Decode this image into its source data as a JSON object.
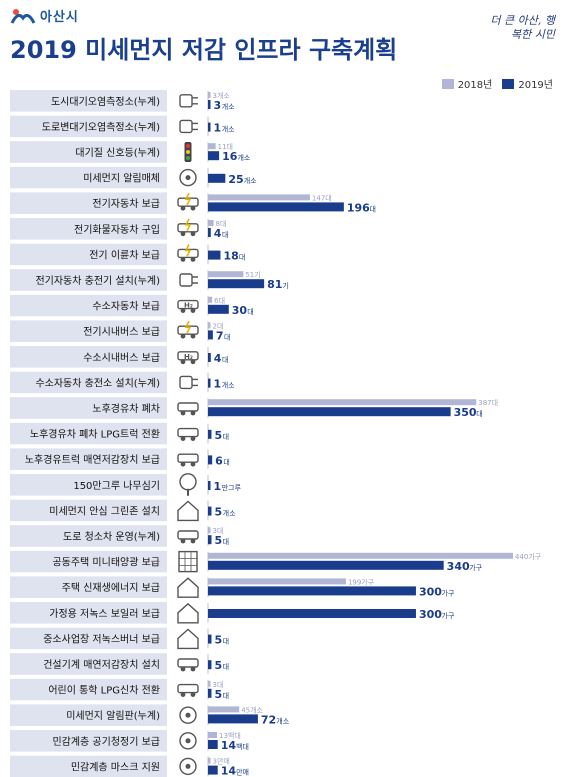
{
  "header": {
    "city_name": "아산시",
    "title": "2019 미세먼지 저감 인프라 구축계획",
    "slogan": "더 큰 아산, 행복한 시민"
  },
  "colors": {
    "series_2018": "#b1b5d6",
    "series_2019": "#1a3c8c",
    "row_band": "#dfe3ef"
  },
  "chart_data": {
    "type": "bar",
    "orientation": "horizontal",
    "title": "2019 미세먼지 저감 인프라 구축계획",
    "legend_position": "top-right",
    "series": [
      {
        "name": "2018년",
        "values": [
          3,
          null,
          11,
          null,
          147,
          8,
          null,
          51,
          6,
          2,
          null,
          null,
          387,
          null,
          null,
          null,
          null,
          3,
          440,
          199,
          null,
          null,
          null,
          3,
          45,
          13,
          3
        ]
      },
      {
        "name": "2019년",
        "values": [
          3,
          1,
          16,
          25,
          196,
          4,
          18,
          81,
          30,
          7,
          4,
          1,
          350,
          5,
          6,
          1,
          5,
          5,
          340,
          300,
          300,
          5,
          5,
          5,
          72,
          14,
          14
        ]
      }
    ],
    "categories": [
      "도시대기오염측정소(누계)",
      "도로변대기오염측정소(누계)",
      "대기질 신호등(누계)",
      "미세먼지 알림매체",
      "전기자동차 보급",
      "전기화물자동차 구입",
      "전기 이륜차 보급",
      "전기자동차 충전기 설치(누계)",
      "수소자동차 보급",
      "전기시내버스 보급",
      "수소시내버스 보급",
      "수소자동차 충전소 설치(누계)",
      "노후경유차 폐차",
      "노후경유차 폐차 LPG트럭 전환",
      "노후경유트럭 매연저감장치 보급",
      "150만그루 나무심기",
      "미세먼지 안심 그린존 설치",
      "도로 청소차 운영(누계)",
      "공동주택 미니태양광 보급",
      "주택 신재생에너지 보급",
      "가정용 저녹스 보일러 보급",
      "중소사업장 저녹스버너 보급",
      "건설기계 매연저감장치 설치",
      "어린이 통학 LPG신차 전환",
      "미세먼지 알림판(누계)",
      "민감계층 공기청정기 보급",
      "민감계층 마스크 지원"
    ],
    "units_2018": [
      "개소",
      "",
      "대",
      "",
      "대",
      "대",
      "",
      "기",
      "대",
      "대",
      "",
      "",
      "대",
      "",
      "",
      "",
      "",
      "대",
      "가구",
      "가구",
      "",
      "",
      "",
      "대",
      "개소",
      "백대",
      "만매"
    ],
    "units_2019": [
      "개소",
      "개소",
      "개소",
      "개소",
      "대",
      "대",
      "대",
      "기",
      "대",
      "대",
      "대",
      "개소",
      "대",
      "대",
      "대",
      "만그루",
      "개소",
      "대",
      "가구",
      "가구",
      "가구",
      "대",
      "대",
      "대",
      "개소",
      "백대",
      "만매"
    ],
    "icons": [
      "monitoring-station-icon",
      "roadside-station-icon",
      "traffic-light-icon",
      "pig-mascot-icon",
      "electric-car-icon",
      "electric-truck-icon",
      "electric-motorcycle-icon",
      "charging-plug-icon",
      "hydrogen-car-icon",
      "electric-bus-icon",
      "hydrogen-bus-icon",
      "hydrogen-station-icon",
      "scrap-car-icon",
      "lpg-truck-icon",
      "truck-filter-icon",
      "tree-icon",
      "green-house-icon",
      "street-sweeper-icon",
      "solar-panel-icon",
      "renewable-house-icon",
      "boiler-icon",
      "burner-icon",
      "construction-machine-icon",
      "school-bus-icon",
      "alert-board-icon",
      "air-purifier-icon",
      "mask-icon"
    ]
  }
}
